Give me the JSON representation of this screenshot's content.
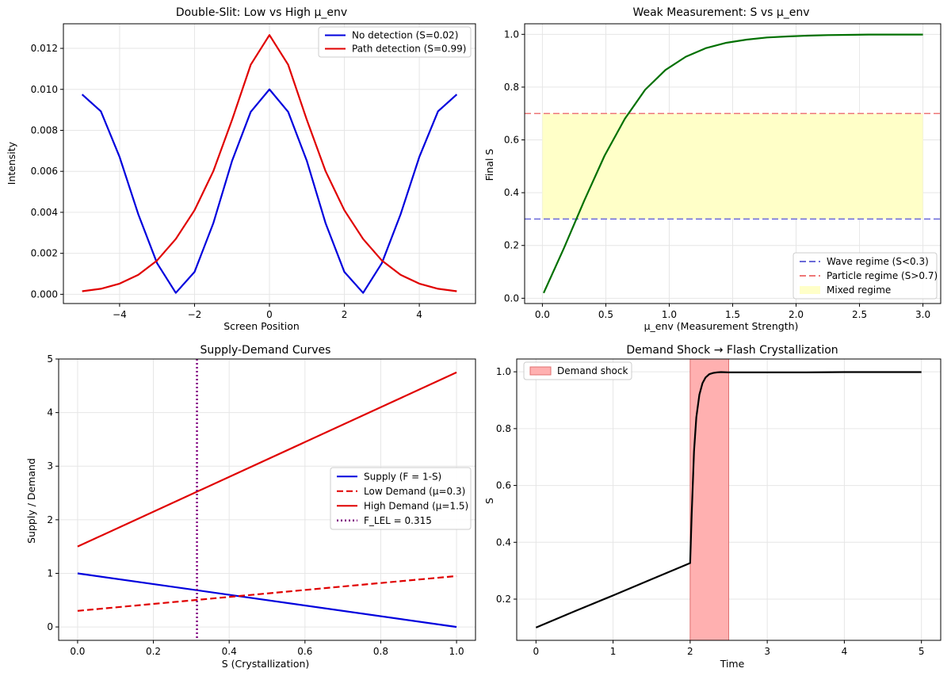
{
  "chart_data": [
    {
      "id": "double-slit",
      "type": "line",
      "title": "Double-Slit: Low vs High μ_env",
      "xlabel": "Screen Position",
      "ylabel": "Intensity",
      "xlim": [
        -5.5,
        5.5
      ],
      "ylim": [
        -0.00045,
        0.0132
      ],
      "xticks": [
        -4,
        -2,
        0,
        2,
        4
      ],
      "yticks": [
        0.0,
        0.002,
        0.004,
        0.006,
        0.008,
        0.01,
        0.012
      ],
      "ytick_labels": [
        "0.000",
        "0.002",
        "0.004",
        "0.006",
        "0.008",
        "0.010",
        "0.012"
      ],
      "grid": true,
      "legend_position": "top-right",
      "series": [
        {
          "name": "No detection (S=0.02)",
          "color": "#0000dd",
          "style": "solid",
          "x": [
            -5,
            -4.5,
            -4,
            -3.5,
            -3,
            -2.5,
            -2,
            -1.5,
            -1,
            -0.5,
            0,
            0.5,
            1,
            1.5,
            2,
            2.5,
            3,
            3.5,
            4,
            4.5,
            5
          ],
          "y": [
            0.00975,
            0.00893,
            0.0067,
            0.0039,
            0.00152,
            7e-05,
            0.00109,
            0.00346,
            0.0065,
            0.0089,
            0.01,
            0.0089,
            0.0065,
            0.00346,
            0.00109,
            7e-05,
            0.00152,
            0.0039,
            0.0067,
            0.00893,
            0.00975
          ]
        },
        {
          "name": "Path detection (S=0.99)",
          "color": "#e00000",
          "style": "solid",
          "x": [
            -5,
            -4.5,
            -4,
            -3.5,
            -3,
            -2.5,
            -2,
            -1.5,
            -1,
            -0.5,
            0,
            0.5,
            1,
            1.5,
            2,
            2.5,
            3,
            3.5,
            4,
            4.5,
            5
          ],
          "y": [
            0.00015,
            0.00027,
            0.00052,
            0.00095,
            0.00165,
            0.0027,
            0.0041,
            0.006,
            0.0085,
            0.0112,
            0.01265,
            0.0112,
            0.0085,
            0.006,
            0.0041,
            0.0027,
            0.00165,
            0.00095,
            0.00052,
            0.00027,
            0.00015
          ]
        }
      ]
    },
    {
      "id": "weak-measurement",
      "type": "line",
      "title": "Weak Measurement: S vs μ_env",
      "xlabel": "μ_env (Measurement Strength)",
      "ylabel": "Final S",
      "xlim": [
        -0.14,
        3.14
      ],
      "ylim": [
        -0.02,
        1.04
      ],
      "xticks": [
        0.0,
        0.5,
        1.0,
        1.5,
        2.0,
        2.5,
        3.0
      ],
      "xtick_labels": [
        "0.0",
        "0.5",
        "1.0",
        "1.5",
        "2.0",
        "2.5",
        "3.0"
      ],
      "yticks": [
        0.0,
        0.2,
        0.4,
        0.6,
        0.8,
        1.0
      ],
      "ytick_labels": [
        "0.0",
        "0.2",
        "0.4",
        "0.6",
        "0.8",
        "1.0"
      ],
      "grid": true,
      "legend_position": "bottom-right",
      "series": [
        {
          "name": "",
          "color": "#007000",
          "style": "solid",
          "x": [
            0.01,
            0.17,
            0.33,
            0.49,
            0.65,
            0.81,
            0.97,
            1.13,
            1.29,
            1.45,
            1.61,
            1.77,
            1.93,
            2.09,
            2.25,
            2.41,
            2.57,
            2.73,
            2.89,
            3.0
          ],
          "y": [
            0.02,
            0.19,
            0.37,
            0.54,
            0.68,
            0.79,
            0.865,
            0.915,
            0.948,
            0.968,
            0.98,
            0.988,
            0.992,
            0.995,
            0.997,
            0.998,
            0.999,
            0.999,
            0.999,
            0.999
          ]
        }
      ],
      "hlines": [
        {
          "name": "Wave regime (S<0.3)",
          "y": 0.3,
          "color": "#6a6ad8",
          "style": "dashed"
        },
        {
          "name": "Particle regime (S>0.7)",
          "y": 0.7,
          "color": "#ee7777",
          "style": "dashed"
        }
      ],
      "span": {
        "name": "Mixed regime",
        "x": [
          0.0,
          3.0
        ],
        "y": [
          0.3,
          0.7
        ],
        "color": "#ffffc8"
      }
    },
    {
      "id": "supply-demand",
      "type": "line",
      "title": "Supply-Demand Curves",
      "xlabel": "S (Crystallization)",
      "ylabel": "Supply / Demand",
      "xlim": [
        -0.05,
        1.05
      ],
      "ylim": [
        -0.25,
        5.0
      ],
      "xticks": [
        0.0,
        0.2,
        0.4,
        0.6,
        0.8,
        1.0
      ],
      "xtick_labels": [
        "0.0",
        "0.2",
        "0.4",
        "0.6",
        "0.8",
        "1.0"
      ],
      "yticks": [
        0,
        1,
        2,
        3,
        4,
        5
      ],
      "ytick_labels": [
        "0",
        "1",
        "2",
        "3",
        "4",
        "5"
      ],
      "grid": true,
      "legend_position": "center-right",
      "series": [
        {
          "name": "Supply (F = 1-S)",
          "color": "#0000dd",
          "style": "solid",
          "x": [
            0,
            1
          ],
          "y": [
            1.0,
            0.0
          ]
        },
        {
          "name": "Low Demand (μ=0.3)",
          "color": "#e00000",
          "style": "dashed",
          "x": [
            0,
            1
          ],
          "y": [
            0.3,
            0.95
          ]
        },
        {
          "name": "High Demand (μ=1.5)",
          "color": "#e00000",
          "style": "solid",
          "x": [
            0,
            1
          ],
          "y": [
            1.5,
            4.75
          ]
        }
      ],
      "vlines": [
        {
          "name": "F_LEL = 0.315",
          "x": 0.315,
          "color": "#800080",
          "style": "dotted"
        }
      ]
    },
    {
      "id": "demand-shock",
      "type": "line",
      "title": "Demand Shock → Flash Crystallization",
      "xlabel": "Time",
      "ylabel": "S",
      "xlim": [
        -0.25,
        5.25
      ],
      "ylim": [
        0.055,
        1.045
      ],
      "xticks": [
        0,
        1,
        2,
        3,
        4,
        5
      ],
      "xtick_labels": [
        "0",
        "1",
        "2",
        "3",
        "4",
        "5"
      ],
      "yticks": [
        0.2,
        0.4,
        0.6,
        0.8,
        1.0
      ],
      "ytick_labels": [
        "0.2",
        "0.4",
        "0.6",
        "0.8",
        "1.0"
      ],
      "grid": true,
      "legend_position": "top-left",
      "series": [
        {
          "name": "",
          "color": "#000000",
          "style": "solid",
          "x": [
            0,
            0.5,
            1,
            1.5,
            2.0,
            2.02,
            2.05,
            2.08,
            2.12,
            2.16,
            2.2,
            2.25,
            2.3,
            2.35,
            2.4,
            2.5,
            3,
            3.5,
            4,
            4.5,
            5
          ],
          "y": [
            0.1,
            0.157,
            0.213,
            0.27,
            0.327,
            0.5,
            0.72,
            0.84,
            0.92,
            0.96,
            0.98,
            0.992,
            0.996,
            0.998,
            0.999,
            0.998,
            0.998,
            0.998,
            0.999,
            0.999,
            0.999
          ]
        }
      ],
      "span": {
        "name": "Demand shock",
        "x": [
          2.0,
          2.5
        ],
        "color": "#ffb0b0",
        "edge": "#e07070"
      }
    }
  ]
}
